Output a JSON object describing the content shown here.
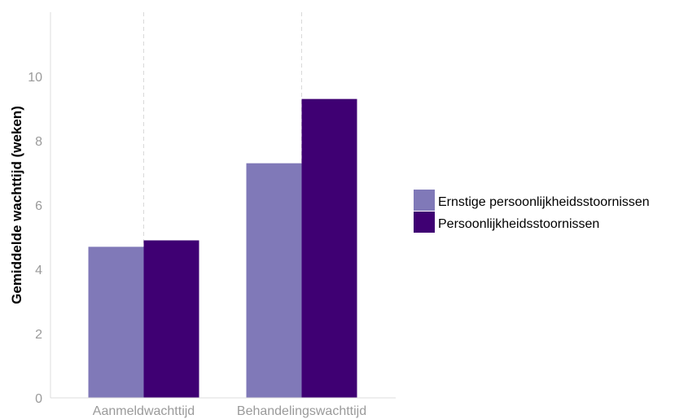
{
  "chart_data": {
    "type": "bar",
    "categories": [
      "Aanmeldwachttijd",
      "Behandelingswachttijd"
    ],
    "series": [
      {
        "name": "Ernstige persoonlijkheidsstoornissen",
        "values": [
          4.7,
          7.3
        ],
        "color": "#8079b8"
      },
      {
        "name": "Persoonlijkheidsstoornissen",
        "values": [
          4.9,
          9.3
        ],
        "color": "#3f0073"
      }
    ],
    "title": "",
    "xlabel": "",
    "ylabel": "Gemiddelde wachttijd (weken)",
    "ylim": [
      0,
      12
    ],
    "yticks": [
      0,
      2,
      4,
      6,
      8,
      10
    ],
    "grid": "vertical dashed lines at category centers",
    "legend_position": "right"
  }
}
